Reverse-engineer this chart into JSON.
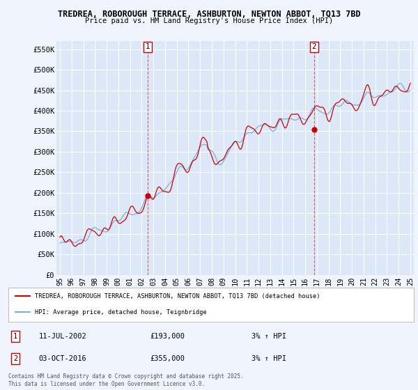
{
  "title_line1": "TREDREA, ROBOROUGH TERRACE, ASHBURTON, NEWTON ABBOT, TQ13 7BD",
  "title_line2": "Price paid vs. HM Land Registry's House Price Index (HPI)",
  "ylabel_ticks": [
    "£0",
    "£50K",
    "£100K",
    "£150K",
    "£200K",
    "£250K",
    "£300K",
    "£350K",
    "£400K",
    "£450K",
    "£500K",
    "£550K"
  ],
  "ytick_values": [
    0,
    50000,
    100000,
    150000,
    200000,
    250000,
    300000,
    350000,
    400000,
    450000,
    500000,
    550000
  ],
  "ylim": [
    0,
    570000
  ],
  "legend_label_red": "TREDREA, ROBOROUGH TERRACE, ASHBURTON, NEWTON ABBOT, TQ13 7BD (detached house)",
  "legend_label_blue": "HPI: Average price, detached house, Teignbridge",
  "annotation1_label": "1",
  "annotation1_date": "11-JUL-2002",
  "annotation1_price": "£193,000",
  "annotation1_hpi": "3% ↑ HPI",
  "annotation2_label": "2",
  "annotation2_date": "03-OCT-2016",
  "annotation2_price": "£355,000",
  "annotation2_hpi": "3% ↑ HPI",
  "footnote": "Contains HM Land Registry data © Crown copyright and database right 2025.\nThis data is licensed under the Open Government Licence v3.0.",
  "bg_color": "#dce8f8",
  "plot_bg_color": "#dce8f8",
  "outer_bg": "#f0f4fc",
  "red_color": "#cc0000",
  "blue_color": "#7aace0",
  "sale1_year": 2002.53,
  "sale1_price": 193000,
  "sale2_year": 2016.75,
  "sale2_price": 355000,
  "start_year": 1995,
  "end_year": 2025
}
